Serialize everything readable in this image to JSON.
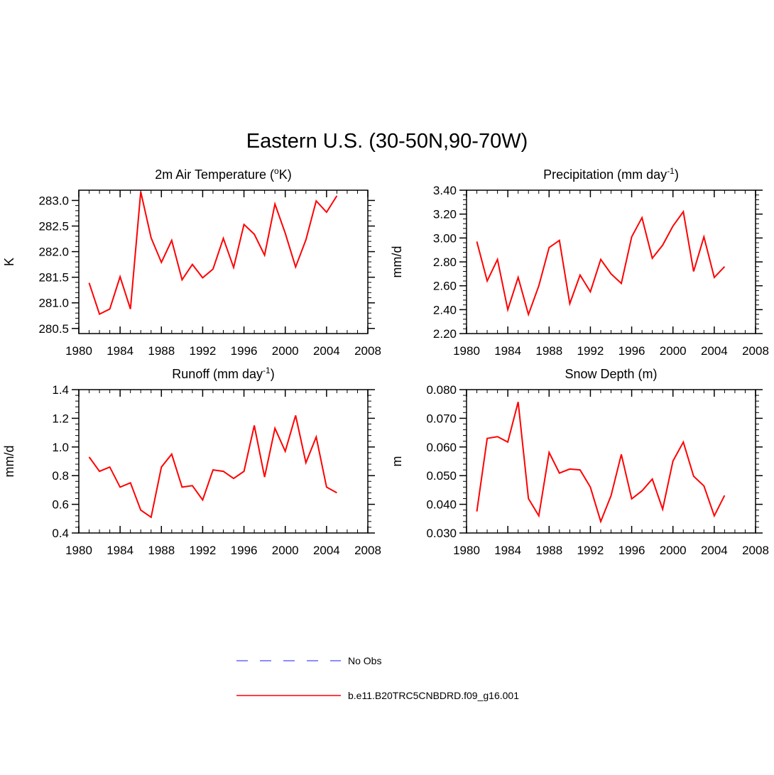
{
  "figure": {
    "title": "Eastern U.S. (30-50N,90-70W)"
  },
  "legend": {
    "entries": [
      {
        "label": "No Obs",
        "color": "#6666ff",
        "style": "dashed"
      },
      {
        "label": "b.e11.B20TRC5CNBDRD.f09_g16.001",
        "color": "#ff0000",
        "style": "solid"
      }
    ]
  },
  "chart_data": [
    {
      "type": "line",
      "title": "2m Air Temperature (",
      "title_sup": "o",
      "title_suffix": "K)",
      "xlabel": "",
      "ylabel": "K",
      "xlim": [
        1980,
        2008
      ],
      "ylim": [
        280.4,
        283.2
      ],
      "xticks": [
        1980,
        1984,
        1988,
        1992,
        1996,
        2000,
        2004,
        2008
      ],
      "yticks": [
        280.5,
        281.0,
        281.5,
        282.0,
        282.5,
        283.0
      ],
      "ytick_labels": [
        "280.5",
        "281.0",
        "281.5",
        "282.0",
        "282.5",
        "283.0"
      ],
      "series": [
        {
          "name": "b.e11.B20TRC5CNBDRD.f09_g16.001",
          "color": "#ff0000",
          "x": [
            1981,
            1982,
            1983,
            1984,
            1985,
            1986,
            1987,
            1988,
            1989,
            1990,
            1991,
            1992,
            1993,
            1994,
            1995,
            1996,
            1997,
            1998,
            1999,
            2000,
            2001,
            2002,
            2003,
            2004,
            2005
          ],
          "values": [
            281.39,
            280.78,
            280.88,
            281.51,
            280.88,
            283.17,
            282.27,
            281.79,
            282.22,
            281.45,
            281.75,
            281.49,
            281.66,
            282.26,
            281.69,
            282.53,
            282.34,
            281.93,
            282.93,
            282.36,
            281.7,
            282.23,
            282.99,
            282.77,
            283.09
          ]
        }
      ]
    },
    {
      "type": "line",
      "title": "Precipitation (mm day",
      "title_sup": "-1",
      "title_suffix": ")",
      "xlabel": "",
      "ylabel": "mm/d",
      "xlim": [
        1980,
        2008
      ],
      "ylim": [
        2.2,
        3.4
      ],
      "xticks": [
        1980,
        1984,
        1988,
        1992,
        1996,
        2000,
        2004,
        2008
      ],
      "yticks": [
        2.2,
        2.4,
        2.6,
        2.8,
        3.0,
        3.2,
        3.4
      ],
      "ytick_labels": [
        "2.20",
        "2.40",
        "2.60",
        "2.80",
        "3.00",
        "3.20",
        "3.40"
      ],
      "series": [
        {
          "name": "b.e11.B20TRC5CNBDRD.f09_g16.001",
          "color": "#ff0000",
          "x": [
            1981,
            1982,
            1983,
            1984,
            1985,
            1986,
            1987,
            1988,
            1989,
            1990,
            1991,
            1992,
            1993,
            1994,
            1995,
            1996,
            1997,
            1998,
            1999,
            2000,
            2001,
            2002,
            2003,
            2004,
            2005
          ],
          "values": [
            2.97,
            2.64,
            2.82,
            2.4,
            2.67,
            2.36,
            2.6,
            2.92,
            2.98,
            2.45,
            2.69,
            2.55,
            2.82,
            2.7,
            2.62,
            3.01,
            3.17,
            2.83,
            2.94,
            3.1,
            3.22,
            2.72,
            3.01,
            2.67,
            2.76
          ]
        }
      ]
    },
    {
      "type": "line",
      "title": "Runoff (mm day",
      "title_sup": "-1",
      "title_suffix": ")",
      "xlabel": "",
      "ylabel": "mm/d",
      "xlim": [
        1980,
        2008
      ],
      "ylim": [
        0.4,
        1.4
      ],
      "xticks": [
        1980,
        1984,
        1988,
        1992,
        1996,
        2000,
        2004,
        2008
      ],
      "yticks": [
        0.4,
        0.6,
        0.8,
        1.0,
        1.2,
        1.4
      ],
      "ytick_labels": [
        "0.4",
        "0.6",
        "0.8",
        "1.0",
        "1.2",
        "1.4"
      ],
      "series": [
        {
          "name": "b.e11.B20TRC5CNBDRD.f09_g16.001",
          "color": "#ff0000",
          "x": [
            1981,
            1982,
            1983,
            1984,
            1985,
            1986,
            1987,
            1988,
            1989,
            1990,
            1991,
            1992,
            1993,
            1994,
            1995,
            1996,
            1997,
            1998,
            1999,
            2000,
            2001,
            2002,
            2003,
            2004,
            2005
          ],
          "values": [
            0.93,
            0.83,
            0.86,
            0.72,
            0.75,
            0.56,
            0.51,
            0.86,
            0.95,
            0.72,
            0.73,
            0.63,
            0.84,
            0.83,
            0.78,
            0.83,
            1.15,
            0.79,
            1.13,
            0.97,
            1.22,
            0.89,
            1.07,
            0.72,
            0.68
          ]
        }
      ]
    },
    {
      "type": "line",
      "title": "Snow Depth (m)",
      "title_sup": "",
      "title_suffix": "",
      "xlabel": "",
      "ylabel": "m",
      "xlim": [
        1980,
        2008
      ],
      "ylim": [
        0.03,
        0.08
      ],
      "xticks": [
        1980,
        1984,
        1988,
        1992,
        1996,
        2000,
        2004,
        2008
      ],
      "yticks": [
        0.03,
        0.04,
        0.05,
        0.06,
        0.07,
        0.08
      ],
      "ytick_labels": [
        "0.030",
        "0.040",
        "0.050",
        "0.060",
        "0.070",
        "0.080"
      ],
      "series": [
        {
          "name": "b.e11.B20TRC5CNBDRD.f09_g16.001",
          "color": "#ff0000",
          "x": [
            1981,
            1982,
            1983,
            1984,
            1985,
            1986,
            1987,
            1988,
            1989,
            1990,
            1991,
            1992,
            1993,
            1994,
            1995,
            1996,
            1997,
            1998,
            1999,
            2000,
            2001,
            2002,
            2003,
            2004,
            2005
          ],
          "values": [
            0.0375,
            0.063,
            0.0636,
            0.0617,
            0.0757,
            0.042,
            0.036,
            0.0581,
            0.0509,
            0.0523,
            0.052,
            0.046,
            0.034,
            0.043,
            0.0574,
            0.0419,
            0.0447,
            0.0488,
            0.0383,
            0.0551,
            0.0617,
            0.0498,
            0.0464,
            0.036,
            0.0431
          ]
        }
      ]
    }
  ]
}
